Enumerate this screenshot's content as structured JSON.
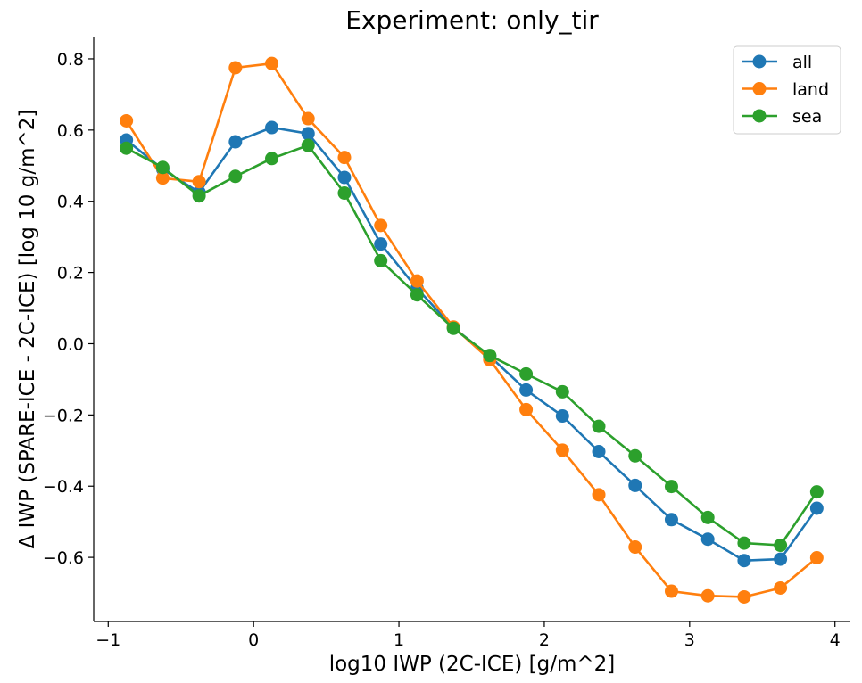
{
  "chart_data": {
    "type": "line",
    "title": "Experiment: only_tir",
    "xlabel": "log10 IWP (2C-ICE) [g/m^2]",
    "ylabel": "Δ IWP (SPARE-ICE - 2C-ICE) [log 10 g/m^2]",
    "xlim": [
      -1.1,
      4.1
    ],
    "ylim": [
      -0.78,
      0.86
    ],
    "xticks": [
      -1,
      0,
      1,
      2,
      3,
      4
    ],
    "xtick_labels": [
      "−1",
      "0",
      "1",
      "2",
      "3",
      "4"
    ],
    "yticks": [
      -0.6,
      -0.4,
      -0.2,
      0.0,
      0.2,
      0.4,
      0.6,
      0.8
    ],
    "ytick_labels": [
      "−0.6",
      "−0.4",
      "−0.2",
      "0.0",
      "0.2",
      "0.4",
      "0.6",
      "0.8"
    ],
    "grid": false,
    "legend_position": "top-right",
    "x": [
      -0.875,
      -0.625,
      -0.375,
      -0.125,
      0.125,
      0.375,
      0.625,
      0.875,
      1.125,
      1.375,
      1.625,
      1.875,
      2.125,
      2.375,
      2.625,
      2.875,
      3.125,
      3.375,
      3.625,
      3.875
    ],
    "series": [
      {
        "name": "all",
        "color": "#1f77b4",
        "values": [
          0.572,
          0.49,
          0.425,
          0.567,
          0.607,
          0.59,
          0.467,
          0.28,
          0.155,
          0.045,
          -0.035,
          -0.13,
          -0.203,
          -0.303,
          -0.398,
          -0.494,
          -0.549,
          -0.609,
          -0.605,
          -0.462
        ]
      },
      {
        "name": "land",
        "color": "#ff7f0e",
        "values": [
          0.626,
          0.465,
          0.455,
          0.775,
          0.787,
          0.632,
          0.523,
          0.332,
          0.176,
          0.047,
          -0.045,
          -0.185,
          -0.299,
          -0.424,
          -0.571,
          -0.695,
          -0.708,
          -0.711,
          -0.686,
          -0.601
        ]
      },
      {
        "name": "sea",
        "color": "#2ca02c",
        "values": [
          0.549,
          0.495,
          0.415,
          0.47,
          0.52,
          0.557,
          0.423,
          0.233,
          0.137,
          0.043,
          -0.033,
          -0.085,
          -0.135,
          -0.232,
          -0.315,
          -0.401,
          -0.488,
          -0.56,
          -0.566,
          -0.416
        ]
      }
    ]
  }
}
